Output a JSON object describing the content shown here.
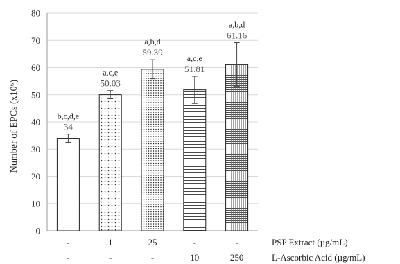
{
  "chart_data": {
    "type": "bar",
    "title": "",
    "xlabel": "",
    "ylabel": "Number of EPCs (x10⁶)",
    "ylim": [
      0,
      80
    ],
    "yticks": [
      0,
      10,
      20,
      30,
      40,
      50,
      60,
      70,
      80
    ],
    "grid": "horizontal",
    "bars": [
      {
        "value": 34,
        "label": "34",
        "error": 1.5,
        "significance": "b,c,d,e",
        "pattern": "blank"
      },
      {
        "value": 50.03,
        "label": "50.03",
        "error": 1.5,
        "significance": "a,c,e",
        "pattern": "dots"
      },
      {
        "value": 59.39,
        "label": "59.39",
        "error": 3.5,
        "significance": "a,b,d",
        "pattern": "dense-dots"
      },
      {
        "value": 51.81,
        "label": "51.81",
        "error": 5.0,
        "significance": "a,c,e",
        "pattern": "horizontal-lines"
      },
      {
        "value": 61.16,
        "label": "61.16",
        "error": 8.0,
        "significance": "a,b,d",
        "pattern": "grid-lines"
      }
    ],
    "treatment_rows": [
      {
        "name": "PSP Extract (µg/mL)",
        "values": [
          "-",
          "1",
          "25",
          "-",
          "-"
        ]
      },
      {
        "name": "L-Ascorbic Acid (µg/mL)",
        "values": [
          "-",
          "-",
          "-",
          "10",
          "250"
        ]
      }
    ]
  }
}
